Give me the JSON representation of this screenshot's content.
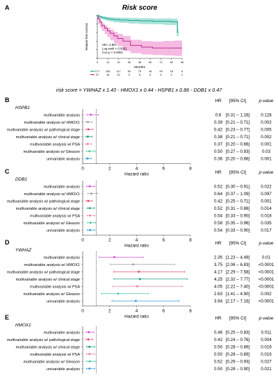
{
  "formula": "risk score = YWHAZ x 1.43 - HMOX1 x 0.44 - HSPB1 x 0.86 - DDB1 x 0.47",
  "colors": {
    "high_risk": "#1aa38f",
    "low_risk": "#b5318f",
    "low_risk_band": "#f3a3d8",
    "high_risk_band": "#8fd9cc",
    "ref_line": "#333333"
  },
  "panel_a": {
    "letter": "A",
    "title": "Risk score",
    "ylabel": "Relapse free survival",
    "xlabel": "Months",
    "stats": [
      "HR= 4.807",
      "Log-rank < 0.0001",
      "Cox p < 0.0001"
    ]
  },
  "forest_axis_label": "Hazard ratio",
  "col_headers": {
    "hr": "HR",
    "ci": "[95% CI]",
    "p": "p-value"
  },
  "chart_data": [
    {
      "type": "line",
      "panel": "A",
      "title": "Risk score",
      "xlabel": "Months",
      "ylabel": "Relapse free survival",
      "xlim": [
        0,
        92
      ],
      "ylim": [
        0,
        1.0
      ],
      "x_ticks": [
        0,
        12,
        24,
        36,
        48,
        60,
        72,
        84,
        96
      ],
      "y_ticks": [
        0,
        0.2,
        0.4,
        0.6,
        0.8,
        1.0
      ],
      "series": [
        {
          "group": "high",
          "color": "#1aa38f",
          "x": [
            0,
            1,
            2,
            3,
            4,
            5,
            7,
            9,
            11,
            14,
            18,
            24,
            34,
            46,
            60,
            72,
            80,
            86,
            87,
            88
          ],
          "y": [
            1.0,
            0.99,
            0.98,
            0.97,
            0.96,
            0.95,
            0.94,
            0.93,
            0.92,
            0.91,
            0.9,
            0.89,
            0.88,
            0.87,
            0.86,
            0.86,
            0.85,
            0.85,
            0.6,
            0.6
          ]
        },
        {
          "group": "low",
          "color": "#b5318f",
          "x": [
            0,
            1,
            3,
            5,
            8,
            11,
            14,
            18,
            22,
            28,
            36,
            48,
            60,
            72,
            84,
            92
          ],
          "y": [
            1.0,
            0.92,
            0.84,
            0.76,
            0.7,
            0.64,
            0.58,
            0.52,
            0.46,
            0.4,
            0.3,
            0.26,
            0.24,
            0.24,
            0.24,
            0.24
          ]
        }
      ],
      "risk_table": {
        "rows": [
          {
            "group": "high",
            "counts": [
              "177",
              "153",
              "117",
              "90",
              "73",
              "44",
              "29",
              "16",
              "5"
            ]
          },
          {
            "group": "low",
            "counts": [
              "27",
              "16",
              "10",
              "9",
              "5",
              "3",
              "3",
              "2",
              "1"
            ]
          }
        ]
      }
    },
    {
      "type": "scatter",
      "panel": "B",
      "gene": "HSPB1",
      "xlabel": "Hazard ratio",
      "xlim": [
        0,
        8
      ],
      "x_ticks": [
        0,
        2,
        4,
        6,
        8
      ],
      "rows": [
        {
          "label": "multivariable analysis",
          "color": "#d64fd6",
          "hr": 0.6,
          "lo": 0.31,
          "hi": 1.16,
          "hr_text": "0.6",
          "ci_text": "[0.31 – 1.16]",
          "p_text": "0.128"
        },
        {
          "label": "multivariable analysis w/ HMOX1",
          "color": "#9d9d9d",
          "hr": 0.39,
          "lo": 0.21,
          "hi": 0.71,
          "hr_text": "0.39",
          "ci_text": "[0.21 – 0.71]",
          "p_text": "0.002"
        },
        {
          "label": "multivariable analysis w/ pathological stage",
          "color": "#e44a6a",
          "hr": 0.42,
          "lo": 0.23,
          "hi": 0.77,
          "hr_text": "0.42",
          "ci_text": "[0.23 – 0.77]",
          "p_text": "0.005"
        },
        {
          "label": "multivariable analysis w/ clinical stage",
          "color": "#1a9b86",
          "hr": 0.38,
          "lo": 0.21,
          "hi": 0.71,
          "hr_text": "0.38",
          "ci_text": "[0.21 – 0.71]",
          "p_text": "0.002"
        },
        {
          "label": "multivariable analysis w/ PSA",
          "color": "#ef7fa6",
          "hr": 0.37,
          "lo": 0.2,
          "hi": 0.66,
          "hr_text": "0.37",
          "ci_text": "[0.20 – 0.66]",
          "p_text": "0.001"
        },
        {
          "label": "multivariable analysis w/ Gleason",
          "color": "#3fcaa6",
          "hr": 0.5,
          "lo": 0.27,
          "hi": 0.93,
          "hr_text": "0.50",
          "ci_text": "[0.27 – 0.93]",
          "p_text": "0.03"
        },
        {
          "label": "univariable analysis",
          "color": "#2e9fd8",
          "hr": 0.36,
          "lo": 0.2,
          "hi": 0.66,
          "hr_text": "0.36",
          "ci_text": "[0.20 – 0.66]",
          "p_text": "0.001"
        }
      ]
    },
    {
      "type": "scatter",
      "panel": "C",
      "gene": "DDB1",
      "xlabel": "Hazard ratio",
      "xlim": [
        0,
        8
      ],
      "x_ticks": [
        0,
        2,
        4,
        6,
        8
      ],
      "rows": [
        {
          "label": "multivariable analysis",
          "color": "#d64fd6",
          "hr": 0.52,
          "lo": 0.3,
          "hi": 0.91,
          "hr_text": "0.52",
          "ci_text": "[0.30 – 0.91]",
          "p_text": "0.022"
        },
        {
          "label": "multivariable analysis w/ HMOX1",
          "color": "#9d9d9d",
          "hr": 0.64,
          "lo": 0.37,
          "hi": 1.09,
          "hr_text": "0.64",
          "ci_text": "[0.37 – 1.09]",
          "p_text": "0.097"
        },
        {
          "label": "multivariable analysis w/ pathological stage",
          "color": "#e44a6a",
          "hr": 0.42,
          "lo": 0.25,
          "hi": 0.71,
          "hr_text": "0.42",
          "ci_text": "[0.25 – 0.71]",
          "p_text": "0.001"
        },
        {
          "label": "multivariable analysis w/ clinical stage",
          "color": "#1a9b86",
          "hr": 0.52,
          "lo": 0.31,
          "hi": 0.88,
          "hr_text": "0.52",
          "ci_text": "[0.31 – 0.88]",
          "p_text": "0.014"
        },
        {
          "label": "multivariable analysis w/ PSA",
          "color": "#ef7fa6",
          "hr": 0.54,
          "lo": 0.33,
          "hi": 0.9,
          "hr_text": "0.54",
          "ci_text": "[0.33 – 0.90]",
          "p_text": "0.018"
        },
        {
          "label": "multivariable analysis w/ Gleason",
          "color": "#3fcaa6",
          "hr": 0.58,
          "lo": 0.35,
          "hi": 0.96,
          "hr_text": "0.58",
          "ci_text": "[0.35 – 0.96]",
          "p_text": "0.035"
        },
        {
          "label": "univariable analysis",
          "color": "#2e9fd8",
          "hr": 0.54,
          "lo": 0.33,
          "hi": 0.9,
          "hr_text": "0.54",
          "ci_text": "[0.33 – 0.90]",
          "p_text": "0.017"
        }
      ]
    },
    {
      "type": "scatter",
      "panel": "D",
      "gene": "YWHAZ",
      "xlabel": "Hazard ratio",
      "xlim": [
        0,
        8
      ],
      "x_ticks": [
        0,
        2,
        4,
        6,
        8
      ],
      "rows": [
        {
          "label": "multivariable analysis",
          "color": "#d64fd6",
          "hr": 2.35,
          "lo": 1.23,
          "hi": 4.49,
          "hr_text": "2.35",
          "ci_text": "[1.23 – 4.49]",
          "p_text": "0.01"
        },
        {
          "label": "multivariable analysis w/ HMOX1",
          "color": "#9d9d9d",
          "hr": 3.75,
          "lo": 2.06,
          "hi": 6.83,
          "hr_text": "3.75",
          "ci_text": "[2.06 – 6.83]",
          "p_text": "<0.0001"
        },
        {
          "label": "multivariable analysis w/ pathological stage",
          "color": "#e44a6a",
          "hr": 4.17,
          "lo": 2.29,
          "hi": 7.58,
          "hr_text": "4.17",
          "ci_text": "[2.29 – 7.58]",
          "p_text": "<0.0001"
        },
        {
          "label": "multivariable analysis w/ clinical stage",
          "color": "#1a9b86",
          "hr": 4.25,
          "lo": 2.32,
          "hi": 7.77,
          "hr_text": "4.25",
          "ci_text": "[2.32 – 7.77]",
          "p_text": "<0.0001"
        },
        {
          "label": "multivariable analysis w/ PSA",
          "color": "#ef7fa6",
          "hr": 4.05,
          "lo": 2.22,
          "hi": 7.4,
          "hr_text": "4.05",
          "ci_text": "[2.22 – 7.40]",
          "p_text": "<0.0001"
        },
        {
          "label": "multivariable analysis w/ Gleason",
          "color": "#3fcaa6",
          "hr": 2.63,
          "lo": 1.41,
          "hi": 4.9,
          "hr_text": "2.63",
          "ci_text": "[1.41 – 4.90]",
          "p_text": "0.002"
        },
        {
          "label": "univariable analysis",
          "color": "#2e9fd8",
          "hr": 3.94,
          "lo": 2.17,
          "hi": 7.16,
          "hr_text": "3.94",
          "ci_text": "[2.17 – 7.16]",
          "p_text": "<0.0001"
        }
      ]
    },
    {
      "type": "scatter",
      "panel": "E",
      "gene": "HMOX1",
      "xlabel": "",
      "xlim": [
        0,
        8
      ],
      "x_ticks": [],
      "rows": [
        {
          "label": "multivariable analysis",
          "color": "#d64fd6",
          "hr": 0.46,
          "lo": 0.25,
          "hi": 0.83,
          "hr_text": "0.46",
          "ci_text": "[0.25 – 0.83]",
          "p_text": "0.011"
        },
        {
          "label": "multivariable analysis w/ pathological stage",
          "color": "#e44a6a",
          "hr": 0.42,
          "lo": 0.24,
          "hi": 0.76,
          "hr_text": "0.42",
          "ci_text": "[0.24 – 0.76]",
          "p_text": "0.004"
        },
        {
          "label": "multivariable analysis w/ clinical stage",
          "color": "#1a9b86",
          "hr": 0.5,
          "lo": 0.28,
          "hi": 0.89,
          "hr_text": "0.50",
          "ci_text": "[0.28 – 0.89]",
          "p_text": "0.019"
        },
        {
          "label": "multivariable analysis w/ PSA",
          "color": "#ef7fa6",
          "hr": 0.5,
          "lo": 0.28,
          "hi": 0.89,
          "hr_text": "0.50",
          "ci_text": "[0.28 – 0.89]",
          "p_text": "0.019"
        },
        {
          "label": "multivariable analysis w/ Gleason",
          "color": "#3fcaa6",
          "hr": 0.52,
          "lo": 0.29,
          "hi": 0.93,
          "hr_text": "0.52",
          "ci_text": "[0.29 – 0.93]",
          "p_text": "0.027"
        },
        {
          "label": "univariable analysis",
          "color": "#2e9fd8",
          "hr": 0.5,
          "lo": 0.28,
          "hi": 0.9,
          "hr_text": "0.50",
          "ci_text": "[0.28 – 0.90]",
          "p_text": "0.021"
        }
      ]
    }
  ]
}
